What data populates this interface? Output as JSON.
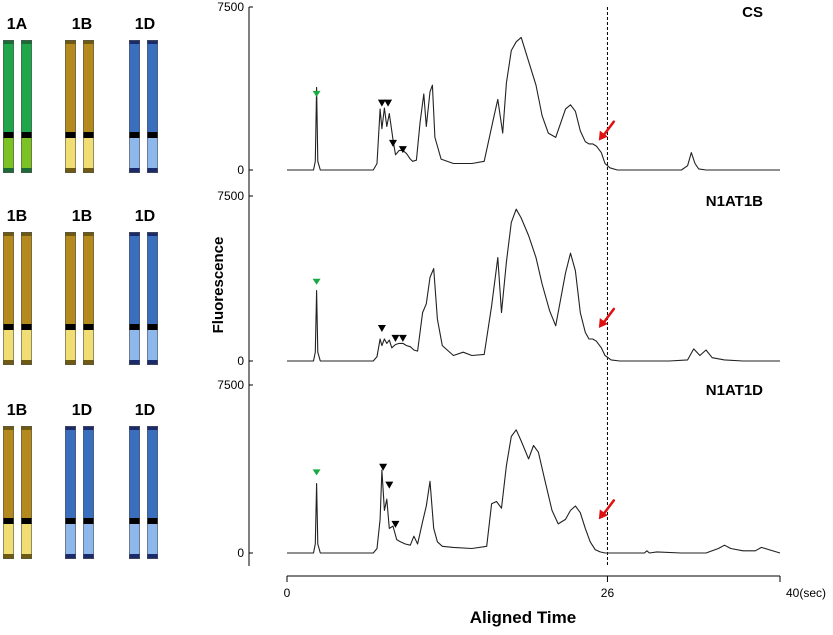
{
  "karyotypes": [
    {
      "labels": [
        "1A",
        "1B",
        "1D"
      ],
      "genomes": [
        "A",
        "B",
        "D"
      ]
    },
    {
      "labels": [
        "1B",
        "1B",
        "1D"
      ],
      "genomes": [
        "B",
        "B",
        "D"
      ]
    },
    {
      "labels": [
        "1B",
        "1D",
        "1D"
      ],
      "genomes": [
        "B",
        "D",
        "D"
      ]
    }
  ],
  "genome_colors": {
    "A": {
      "top": "#1fa64a",
      "bottom": "#7cc225",
      "cap": "#1c6a35"
    },
    "B": {
      "top": "#b48a1e",
      "bottom": "#f0dd74",
      "cap": "#6e5a10"
    },
    "D": {
      "top": "#3a6fc0",
      "bottom": "#8eb8ec",
      "cap": "#1a2a6a"
    }
  },
  "chart_data": {
    "type": "line",
    "xlabel": "Aligned Time",
    "ylabel": "Fluorescence",
    "xlim": [
      0,
      40
    ],
    "x_ticks": [
      {
        "value": 0,
        "label": "0"
      },
      {
        "value": 26,
        "label": "26"
      },
      {
        "value": 40,
        "label": "40(sec)"
      }
    ],
    "ylim": [
      0,
      7500
    ],
    "y_tick_labels": [
      "7500",
      "0"
    ],
    "reference_line_x": 26,
    "colors": {
      "line": "#222222",
      "arrow": "#e01010",
      "green_marker": "#1aaa44",
      "black_marker": "#000000"
    },
    "panels": [
      {
        "name": "CS",
        "green_markers": [
          {
            "x": 2.4,
            "y": 3500
          }
        ],
        "black_markers": [
          {
            "x": 7.7,
            "y": 3100
          },
          {
            "x": 8.2,
            "y": 3100
          },
          {
            "x": 8.6,
            "y": 1250
          },
          {
            "x": 9.4,
            "y": 960
          }
        ],
        "arrow": {
          "x": 25.3,
          "y": 1350
        },
        "x": [
          0,
          2.15,
          2.3,
          2.4,
          2.5,
          2.7,
          7.0,
          7.3,
          7.55,
          7.7,
          7.9,
          8.1,
          8.3,
          8.6,
          8.8,
          9.1,
          9.4,
          9.7,
          10.0,
          10.2,
          10.5,
          10.8,
          11.1,
          11.3,
          11.6,
          11.8,
          12.0,
          12.5,
          13.5,
          15.0,
          16.0,
          16.8,
          17.1,
          17.5,
          17.8,
          18.2,
          18.6,
          19.0,
          19.6,
          20.2,
          20.7,
          21.2,
          21.8,
          22.6,
          23.0,
          23.4,
          23.8,
          24.2,
          24.5,
          24.8,
          25.1,
          25.5,
          25.8,
          26.2,
          26.8,
          28.0,
          30.0,
          32.0,
          32.5,
          32.8,
          33.1,
          33.4,
          34.0,
          37.0,
          40.0
        ],
        "y": [
          0,
          0,
          400,
          3800,
          400,
          0,
          0,
          300,
          2800,
          1900,
          2850,
          2000,
          2600,
          1400,
          700,
          900,
          900,
          750,
          500,
          400,
          450,
          2200,
          3500,
          2000,
          3600,
          3900,
          1500,
          500,
          300,
          300,
          400,
          2500,
          3250,
          1700,
          4000,
          5500,
          5900,
          6100,
          5000,
          3900,
          2500,
          1700,
          1500,
          2800,
          3000,
          2700,
          1800,
          1300,
          1200,
          1200,
          1100,
          800,
          300,
          100,
          0,
          0,
          0,
          0,
          200,
          800,
          300,
          50,
          0,
          0,
          0
        ]
      },
      {
        "name": "N1AT1B",
        "green_markers": [
          {
            "x": 2.4,
            "y": 3600
          }
        ],
        "black_markers": [
          {
            "x": 7.7,
            "y": 1500
          },
          {
            "x": 8.8,
            "y": 1050
          },
          {
            "x": 9.4,
            "y": 1050
          }
        ],
        "arrow": {
          "x": 25.3,
          "y": 1500
        },
        "x": [
          0,
          2.15,
          2.3,
          2.4,
          2.5,
          2.7,
          7.0,
          7.3,
          7.55,
          7.7,
          7.9,
          8.1,
          8.3,
          8.5,
          8.8,
          9.1,
          9.4,
          9.7,
          10.0,
          10.3,
          10.6,
          11.0,
          11.3,
          11.6,
          11.9,
          12.2,
          12.6,
          13.5,
          14.3,
          15.0,
          16.0,
          16.6,
          17.1,
          17.4,
          17.8,
          18.2,
          18.6,
          19.0,
          19.6,
          20.2,
          20.7,
          21.3,
          21.8,
          22.6,
          23.0,
          23.4,
          23.8,
          24.2,
          24.5,
          24.8,
          25.1,
          25.5,
          25.8,
          26.3,
          27.0,
          28.0,
          30.0,
          31.0,
          32.5,
          33.0,
          33.5,
          34.0,
          34.5,
          35.5,
          37.0,
          40.0
        ],
        "y": [
          0,
          0,
          400,
          3200,
          400,
          0,
          0,
          200,
          1000,
          700,
          1000,
          800,
          950,
          600,
          750,
          800,
          800,
          700,
          650,
          500,
          450,
          2200,
          2600,
          3800,
          4200,
          1900,
          700,
          250,
          400,
          250,
          300,
          2500,
          4700,
          2200,
          4500,
          6300,
          6900,
          6500,
          5700,
          4700,
          3500,
          2300,
          1600,
          4000,
          4900,
          4100,
          2200,
          1300,
          1000,
          1000,
          900,
          600,
          250,
          50,
          0,
          0,
          0,
          0,
          50,
          550,
          250,
          500,
          150,
          50,
          0,
          0
        ]
      },
      {
        "name": "N1AT1D",
        "green_markers": [
          {
            "x": 2.4,
            "y": 3600
          }
        ],
        "black_markers": [
          {
            "x": 7.8,
            "y": 3850
          },
          {
            "x": 8.3,
            "y": 3050
          },
          {
            "x": 8.8,
            "y": 1300
          }
        ],
        "arrow": {
          "x": 25.3,
          "y": 1500
        },
        "x": [
          0,
          2.15,
          2.3,
          2.4,
          2.5,
          2.7,
          7.0,
          7.3,
          7.55,
          7.7,
          7.9,
          8.1,
          8.3,
          8.6,
          8.9,
          9.2,
          9.6,
          10.0,
          10.3,
          10.6,
          11.0,
          11.3,
          11.6,
          11.9,
          12.2,
          12.6,
          13.5,
          15.0,
          16.2,
          16.6,
          17.0,
          17.4,
          17.8,
          18.2,
          18.6,
          19.0,
          19.6,
          20.0,
          20.4,
          20.9,
          21.5,
          22.0,
          22.6,
          23.0,
          23.4,
          23.8,
          24.2,
          24.6,
          25.0,
          25.4,
          25.8,
          26.3,
          27.0,
          28.0,
          29.0,
          29.2,
          29.4,
          30.0,
          32.0,
          34.0,
          35.0,
          35.5,
          36.0,
          37.0,
          38.0,
          38.5,
          40.0
        ],
        "y": [
          0,
          0,
          400,
          3100,
          400,
          0,
          0,
          200,
          1500,
          3700,
          1900,
          2400,
          1100,
          1200,
          600,
          500,
          400,
          350,
          750,
          400,
          1400,
          2100,
          3200,
          1100,
          500,
          300,
          250,
          200,
          300,
          2200,
          2300,
          2000,
          3900,
          5200,
          5500,
          5000,
          4200,
          4800,
          4500,
          3300,
          1900,
          1300,
          1500,
          1900,
          2100,
          1800,
          1100,
          500,
          150,
          50,
          0,
          0,
          0,
          0,
          0,
          100,
          0,
          50,
          0,
          0,
          200,
          350,
          200,
          100,
          100,
          250,
          0
        ]
      }
    ]
  }
}
